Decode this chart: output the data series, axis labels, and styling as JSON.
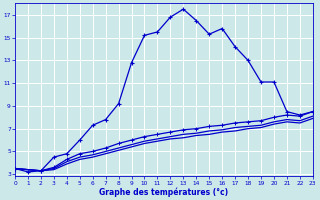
{
  "xlabel": "Graphe des températures (°c)",
  "bg_color": "#cce8e8",
  "grid_color": "#aacccc",
  "line_color": "#0000cc",
  "x_ticks": [
    0,
    1,
    2,
    3,
    4,
    5,
    6,
    7,
    8,
    9,
    10,
    11,
    12,
    13,
    14,
    15,
    16,
    17,
    18,
    19,
    20,
    21,
    22,
    23
  ],
  "y_ticks": [
    3,
    5,
    7,
    9,
    11,
    13,
    15,
    17
  ],
  "xlim": [
    0,
    23
  ],
  "ylim": [
    2.8,
    18.0
  ],
  "curve1_x": [
    0,
    1,
    2,
    3,
    4,
    5,
    6,
    7,
    8,
    9,
    10,
    11,
    12,
    13,
    14,
    15,
    16,
    17,
    18,
    19,
    20,
    21,
    22,
    23
  ],
  "curve1_y": [
    3.5,
    3.2,
    3.3,
    4.5,
    4.8,
    6.0,
    7.3,
    7.8,
    9.2,
    12.8,
    15.2,
    15.5,
    16.8,
    17.5,
    16.5,
    15.3,
    15.8,
    14.2,
    13.0,
    11.1,
    11.1,
    8.5,
    8.2,
    8.5
  ],
  "curve1_marker_x": [
    0,
    2,
    3,
    4,
    5,
    6,
    7,
    8,
    9,
    10,
    11,
    12,
    13,
    14,
    15,
    16,
    17,
    18,
    19,
    20,
    21,
    22,
    23
  ],
  "curve1_marker_y": [
    3.5,
    3.3,
    4.5,
    4.8,
    6.0,
    7.3,
    7.8,
    9.2,
    12.8,
    15.2,
    15.5,
    16.8,
    17.5,
    16.5,
    15.3,
    15.8,
    14.2,
    13.0,
    11.1,
    11.1,
    8.5,
    8.2,
    8.5
  ],
  "curve2_x": [
    0,
    2,
    3,
    4,
    5,
    6,
    7,
    8,
    9,
    10,
    11,
    12,
    13,
    14,
    15,
    16,
    17,
    18,
    19,
    20,
    21,
    22,
    23
  ],
  "curve2_y": [
    3.5,
    3.3,
    3.6,
    4.3,
    4.8,
    5.0,
    5.3,
    5.7,
    6.0,
    6.3,
    6.5,
    6.7,
    6.9,
    7.0,
    7.2,
    7.3,
    7.5,
    7.6,
    7.7,
    8.0,
    8.2,
    8.1,
    8.5
  ],
  "curve3_x": [
    0,
    2,
    3,
    4,
    5,
    6,
    7,
    8,
    9,
    10,
    11,
    12,
    13,
    14,
    15,
    16,
    17,
    18,
    19,
    20,
    21,
    22,
    23
  ],
  "curve3_y": [
    3.5,
    3.3,
    3.5,
    4.1,
    4.5,
    4.7,
    5.0,
    5.3,
    5.6,
    5.9,
    6.1,
    6.3,
    6.5,
    6.6,
    6.8,
    6.9,
    7.1,
    7.2,
    7.3,
    7.6,
    7.8,
    7.7,
    8.1
  ],
  "curve4_x": [
    0,
    2,
    3,
    4,
    5,
    6,
    7,
    8,
    9,
    10,
    11,
    12,
    13,
    14,
    15,
    16,
    17,
    18,
    19,
    20,
    21,
    22,
    23
  ],
  "curve4_y": [
    3.5,
    3.3,
    3.4,
    3.9,
    4.3,
    4.5,
    4.8,
    5.1,
    5.4,
    5.7,
    5.9,
    6.1,
    6.2,
    6.4,
    6.5,
    6.7,
    6.8,
    7.0,
    7.1,
    7.4,
    7.6,
    7.5,
    7.9
  ]
}
